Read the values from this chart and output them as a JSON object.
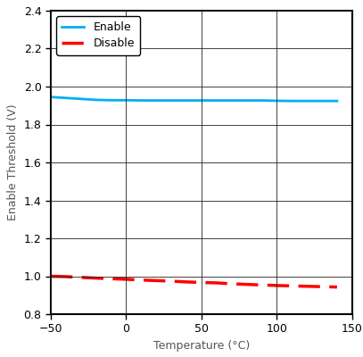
{
  "title": "",
  "xlabel": "Temperature (°C)",
  "ylabel": "Enable Threshold (V)",
  "xlim": [
    -50,
    150
  ],
  "ylim": [
    0.8,
    2.4
  ],
  "xticks": [
    -50,
    0,
    50,
    100,
    150
  ],
  "yticks": [
    0.8,
    1.0,
    1.2,
    1.4,
    1.6,
    1.8,
    2.0,
    2.2,
    2.4
  ],
  "enable_x": [
    -50,
    -40,
    -30,
    -20,
    -10,
    0,
    10,
    20,
    30,
    40,
    50,
    60,
    70,
    80,
    90,
    100,
    110,
    120,
    130,
    140
  ],
  "enable_y": [
    1.945,
    1.94,
    1.935,
    1.93,
    1.928,
    1.928,
    1.927,
    1.927,
    1.927,
    1.927,
    1.927,
    1.927,
    1.927,
    1.927,
    1.927,
    1.925,
    1.924,
    1.924,
    1.924,
    1.924
  ],
  "disable_x": [
    -50,
    -40,
    -30,
    -20,
    -10,
    0,
    10,
    20,
    30,
    40,
    50,
    60,
    70,
    80,
    90,
    100,
    110,
    120,
    130,
    140
  ],
  "disable_y": [
    1.0,
    0.998,
    0.994,
    0.99,
    0.987,
    0.984,
    0.98,
    0.977,
    0.974,
    0.97,
    0.967,
    0.965,
    0.96,
    0.957,
    0.954,
    0.951,
    0.949,
    0.947,
    0.945,
    0.943
  ],
  "enable_color": "#00B0F0",
  "disable_color": "#FF0000",
  "legend_enable": "Enable",
  "legend_disable": "Disable",
  "bg_color": "#FFFFFF",
  "label_fontsize": 9,
  "tick_fontsize": 9,
  "legend_fontsize": 9
}
